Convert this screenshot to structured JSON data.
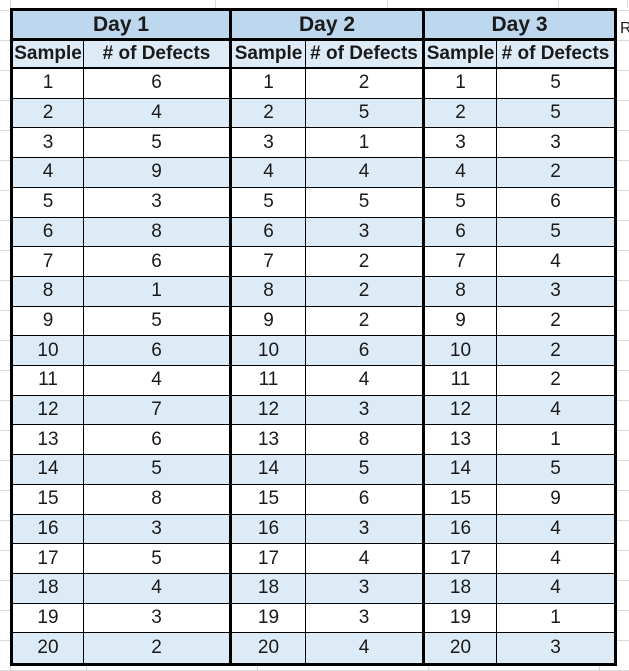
{
  "sheet": {
    "adjacent_cell_text": "R",
    "gridline_color": "#d9d9d9",
    "background": "#ffffff"
  },
  "table": {
    "day_headers": [
      "Day 1",
      "Day 2",
      "Day 3"
    ],
    "column_headers": [
      "Sample",
      "# of Defects",
      "Sample",
      "# of Defects",
      "Sample",
      "# of Defects"
    ],
    "samples": [
      1,
      2,
      3,
      4,
      5,
      6,
      7,
      8,
      9,
      10,
      11,
      12,
      13,
      14,
      15,
      16,
      17,
      18,
      19,
      20
    ],
    "days": [
      {
        "label": "Day 1",
        "defects": [
          6,
          4,
          5,
          9,
          3,
          8,
          6,
          1,
          5,
          6,
          4,
          7,
          6,
          5,
          8,
          3,
          5,
          4,
          3,
          2
        ]
      },
      {
        "label": "Day 2",
        "defects": [
          2,
          5,
          1,
          4,
          5,
          3,
          2,
          2,
          2,
          6,
          4,
          3,
          8,
          5,
          6,
          3,
          4,
          3,
          3,
          4
        ]
      },
      {
        "label": "Day 3",
        "defects": [
          5,
          5,
          3,
          2,
          6,
          5,
          4,
          3,
          2,
          2,
          2,
          4,
          1,
          5,
          9,
          4,
          4,
          4,
          1,
          3
        ]
      }
    ],
    "colors": {
      "day_header_fill": "#BDD7EE",
      "column_header_fill": "#DDEBF7",
      "band_fill": "#DDEBF7",
      "plain_fill": "#FFFFFF",
      "border": "#000000",
      "text": "#1a1a1a"
    }
  }
}
